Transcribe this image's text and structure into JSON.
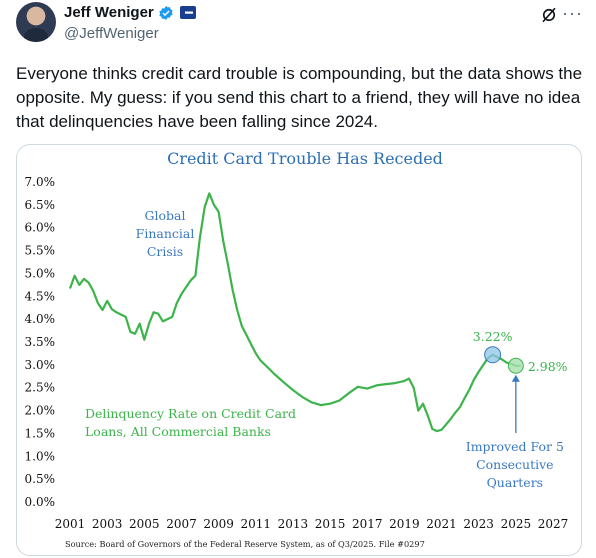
{
  "author": {
    "name": "Jeff Weniger",
    "handle": "@JeffWeniger",
    "verified_icon": "verified-badge-icon",
    "affiliation_icon": "flag-icon"
  },
  "post": {
    "text": "Everyone thinks credit card trouble is compounding, but the data shows the opposite. My guess: if you send this chart to a friend, they will have no idea that delinquencies have been falling since 2024."
  },
  "actions": {
    "grok_icon": "grok-icon",
    "more_label": "···"
  },
  "colors": {
    "title": "#2c6fb5",
    "line": "#3cb44b",
    "annotation_blue": "#3a78c2",
    "axis_text": "#111111"
  },
  "chart_data": {
    "type": "line",
    "title": "Credit Card Trouble Has Receded",
    "xlim": [
      2001,
      2027
    ],
    "ylim": [
      0,
      7
    ],
    "x_ticks": [
      "2001",
      "2003",
      "2005",
      "2007",
      "2009",
      "2011",
      "2013",
      "2015",
      "2017",
      "2019",
      "2021",
      "2023",
      "2025",
      "2027"
    ],
    "y_ticks": [
      "0.0%",
      "0.5%",
      "1.0%",
      "1.5%",
      "2.0%",
      "2.5%",
      "3.0%",
      "3.5%",
      "4.0%",
      "4.5%",
      "5.0%",
      "5.5%",
      "6.0%",
      "6.5%",
      "7.0%"
    ],
    "series": [
      {
        "name": "Delinquency Rate on Credit Card Loans, All Commercial Banks",
        "x": [
          2001.0,
          2001.25,
          2001.5,
          2001.75,
          2002.0,
          2002.25,
          2002.5,
          2002.75,
          2003.0,
          2003.25,
          2003.5,
          2003.75,
          2004.0,
          2004.25,
          2004.5,
          2004.75,
          2005.0,
          2005.25,
          2005.5,
          2005.75,
          2006.0,
          2006.25,
          2006.5,
          2006.75,
          2007.0,
          2007.25,
          2007.5,
          2007.75,
          2008.0,
          2008.25,
          2008.5,
          2008.75,
          2009.0,
          2009.25,
          2009.5,
          2009.75,
          2010.0,
          2010.25,
          2010.5,
          2010.75,
          2011.0,
          2011.25,
          2011.5,
          2011.75,
          2012.0,
          2012.5,
          2013.0,
          2013.5,
          2014.0,
          2014.5,
          2015.0,
          2015.5,
          2016.0,
          2016.5,
          2017.0,
          2017.5,
          2018.0,
          2018.5,
          2019.0,
          2019.25,
          2019.5,
          2019.75,
          2020.0,
          2020.25,
          2020.5,
          2020.75,
          2021.0,
          2021.25,
          2021.5,
          2021.75,
          2022.0,
          2022.25,
          2022.5,
          2022.75,
          2023.0,
          2023.25,
          2023.5,
          2023.75,
          2024.0,
          2024.25,
          2024.5,
          2024.75,
          2025.0,
          2025.25
        ],
        "values": [
          4.67,
          4.95,
          4.75,
          4.88,
          4.8,
          4.62,
          4.35,
          4.2,
          4.4,
          4.22,
          4.15,
          4.1,
          4.05,
          3.72,
          3.68,
          3.9,
          3.55,
          3.9,
          4.15,
          4.12,
          3.95,
          4.0,
          4.05,
          4.35,
          4.55,
          4.7,
          4.85,
          4.95,
          5.8,
          6.45,
          6.75,
          6.5,
          6.35,
          5.7,
          5.2,
          4.65,
          4.2,
          3.85,
          3.65,
          3.45,
          3.25,
          3.1,
          3.0,
          2.9,
          2.8,
          2.62,
          2.45,
          2.3,
          2.18,
          2.12,
          2.15,
          2.22,
          2.38,
          2.52,
          2.48,
          2.55,
          2.58,
          2.6,
          2.65,
          2.7,
          2.5,
          2.0,
          2.15,
          1.9,
          1.6,
          1.55,
          1.58,
          1.7,
          1.82,
          1.96,
          2.08,
          2.28,
          2.46,
          2.68,
          2.85,
          3.0,
          3.15,
          3.22,
          3.17,
          3.12,
          3.05,
          3.02,
          2.98,
          2.98
        ]
      }
    ],
    "annotations": {
      "gfc": [
        "Global",
        "Financial",
        "Crisis"
      ],
      "series_label": [
        "Delinquency Rate on Credit Card",
        "Loans, All Commercial Banks"
      ],
      "peak_label": "3.22%",
      "latest_label": "2.98%",
      "improved": [
        "Improved For 5",
        "Consecutive",
        "Quarters"
      ],
      "source": "Source: Board of Governors of the Federal Reserve System, as of Q3/2025. File #0297"
    }
  }
}
